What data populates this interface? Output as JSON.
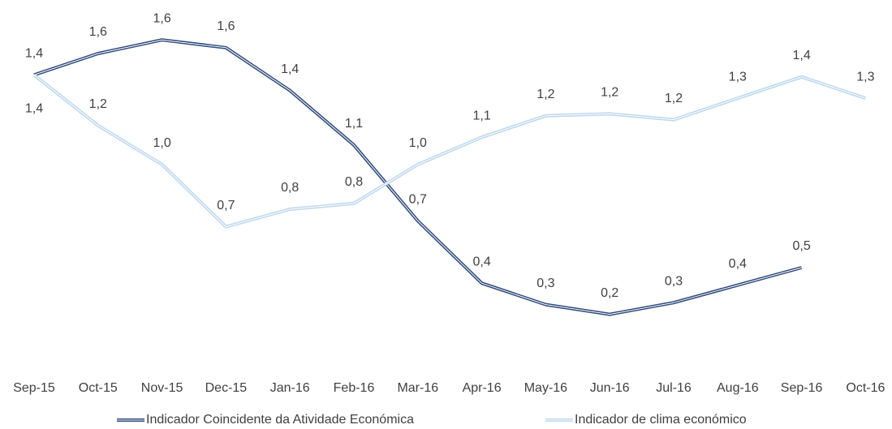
{
  "chart_data": {
    "type": "line",
    "categories": [
      "Sep-15",
      "Oct-15",
      "Nov-15",
      "Dec-15",
      "Jan-16",
      "Feb-16",
      "Mar-16",
      "Apr-16",
      "May-16",
      "Jun-16",
      "Jul-16",
      "Aug-16",
      "Sep-16",
      "Oct-16"
    ],
    "series": [
      {
        "name": "Indicador Coincidente da Atividade Económica",
        "color": "#2f4b7c",
        "values": [
          1.44,
          1.55,
          1.62,
          1.58,
          1.36,
          1.08,
          0.69,
          0.37,
          0.26,
          0.21,
          0.27,
          0.36,
          0.45,
          null
        ],
        "value_labels": [
          "1,4",
          "1,6",
          "1,6",
          "1,6",
          "1,4",
          "1,1",
          "0,7",
          "0,4",
          "0,3",
          "0,2",
          "0,3",
          "0,4",
          "0,5",
          null
        ]
      },
      {
        "name": "Indicador de clima económico",
        "color": "#bdd7ee",
        "values": [
          1.44,
          1.18,
          0.98,
          0.66,
          0.75,
          0.78,
          0.98,
          1.12,
          1.23,
          1.24,
          1.21,
          1.32,
          1.43,
          1.32
        ],
        "value_labels": [
          "1,4",
          "1,2",
          "1,0",
          "0,7",
          "0,8",
          "0,8",
          "1,0",
          "1,1",
          "1,2",
          "1,2",
          "1,2",
          "1,3",
          "1,4",
          "1,3"
        ]
      }
    ],
    "ylim": [
      0,
      1.8
    ],
    "legend": "bottom"
  }
}
